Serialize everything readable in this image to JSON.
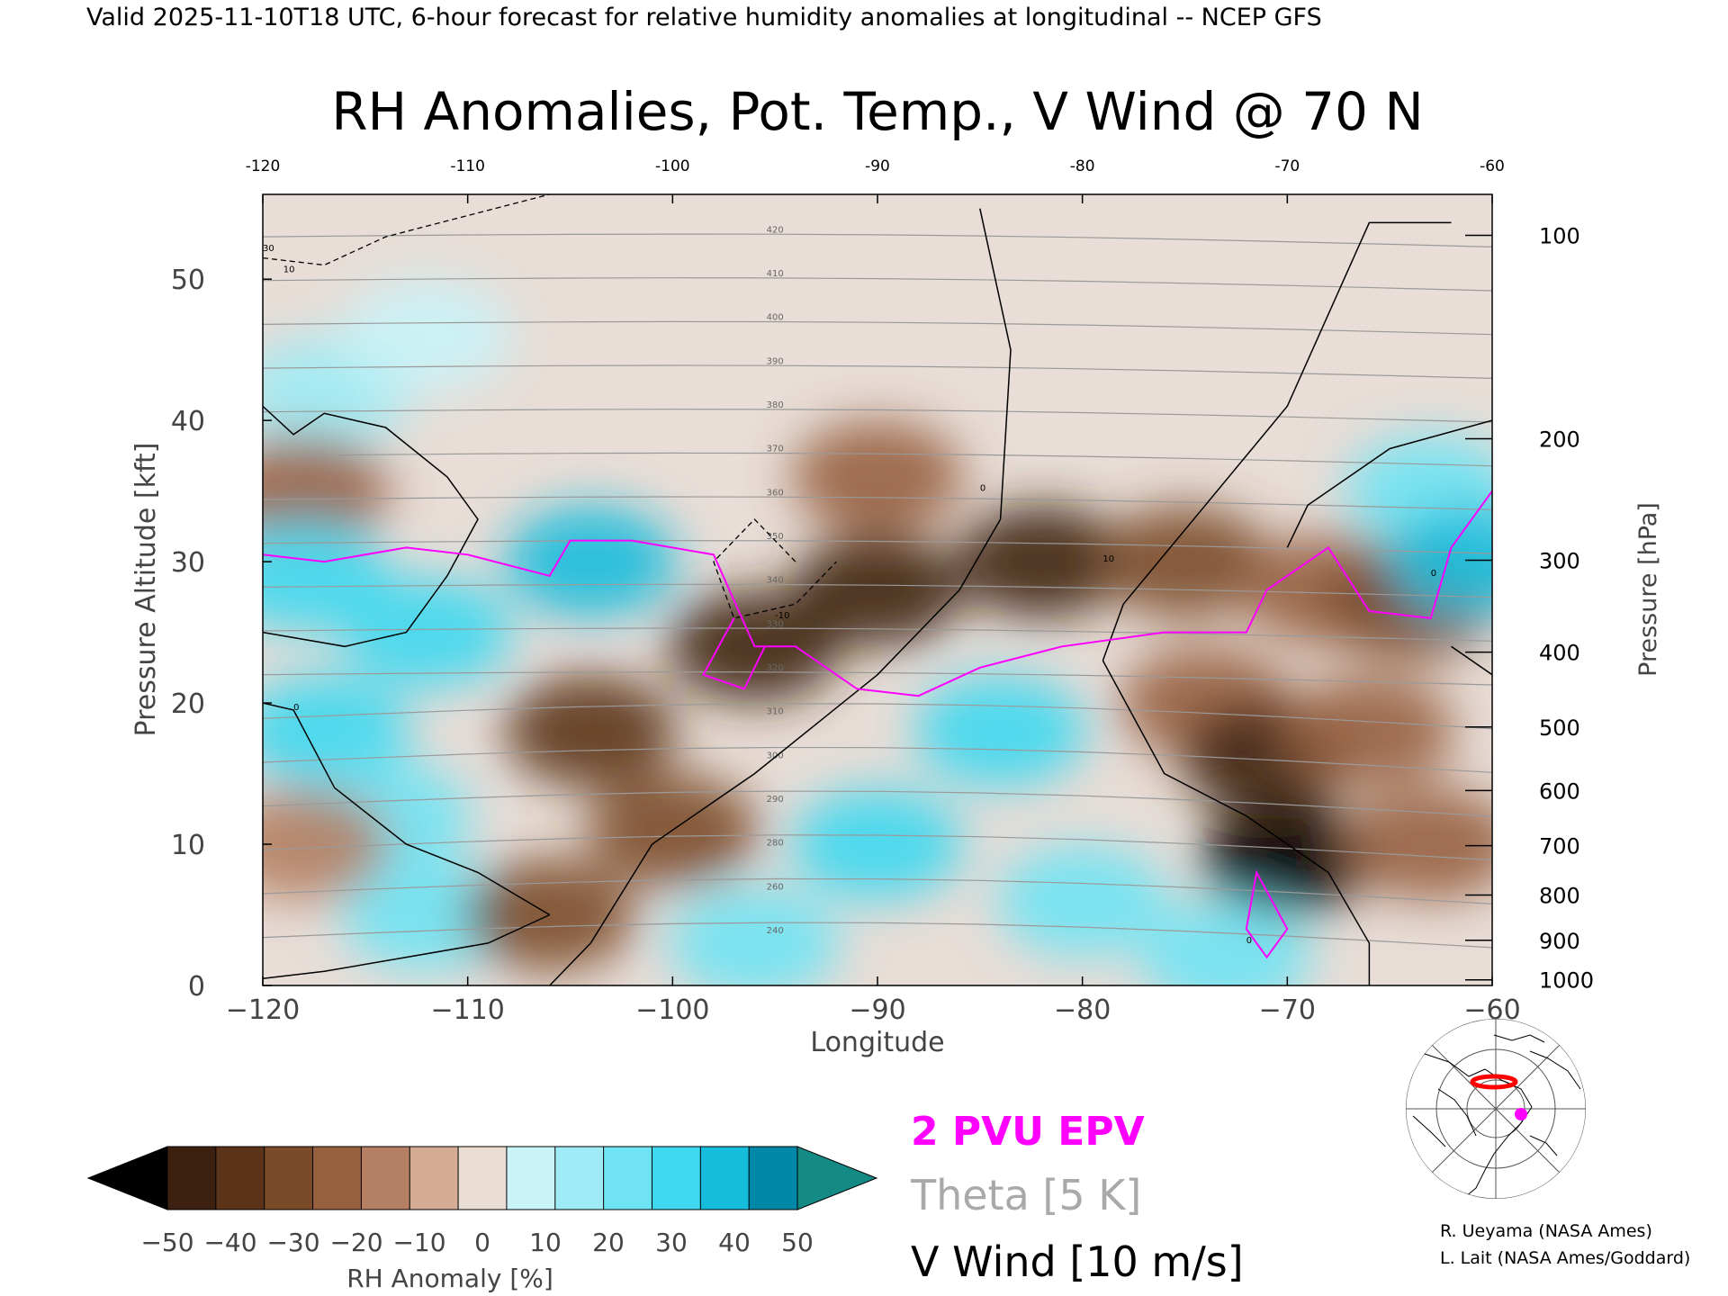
{
  "header": {
    "valid_line": "Valid 2025-11-10T18 UTC, 6-hour forecast for relative humidity anomalies at longitudinal -- NCEP GFS",
    "title": "RH Anomalies, Pot. Temp., V Wind @ 70 N"
  },
  "chart_data": {
    "type": "heatmap",
    "title": "RH Anomalies, Pot. Temp., V Wind @ 70 N",
    "xlabel": "Longitude",
    "ylabel": "Pressure Altitude [kft]",
    "ylabel_right": "Pressure [hPa]",
    "xlim": [
      -120,
      -60
    ],
    "ylim": [
      0,
      56
    ],
    "x_ticks": [
      -120,
      -110,
      -100,
      -90,
      -80,
      -70,
      -60
    ],
    "x_tick_labels": [
      "−120",
      "−110",
      "−100",
      "−90",
      "−80",
      "−70",
      "−60"
    ],
    "x_top_tick_labels": [
      "-120",
      "-110",
      "-100",
      "-90",
      "-80",
      "-70",
      "-60"
    ],
    "y_ticks": [
      0,
      10,
      20,
      30,
      40,
      50
    ],
    "y_tick_labels": [
      "0",
      "10",
      "20",
      "30",
      "40",
      "50"
    ],
    "pressure_ticks": [
      {
        "hPa": 100,
        "label": "100",
        "kft": 53.1
      },
      {
        "hPa": 200,
        "label": "200",
        "kft": 38.7
      },
      {
        "hPa": 300,
        "label": "300",
        "kft": 30.1
      },
      {
        "hPa": 400,
        "label": "400",
        "kft": 23.6
      },
      {
        "hPa": 500,
        "label": "500",
        "kft": 18.3
      },
      {
        "hPa": 600,
        "label": "600",
        "kft": 13.8
      },
      {
        "hPa": 700,
        "label": "700",
        "kft": 9.9
      },
      {
        "hPa": 800,
        "label": "800",
        "kft": 6.4
      },
      {
        "hPa": 900,
        "label": "900",
        "kft": 3.2
      },
      {
        "hPa": 1000,
        "label": "1000",
        "kft": 0.4
      }
    ],
    "rh_anomaly_regions": [
      {
        "lon": -117,
        "kft": 42,
        "value": 15
      },
      {
        "lon": -112,
        "kft": 46,
        "value": 5
      },
      {
        "lon": -118,
        "kft": 35,
        "value": -15
      },
      {
        "lon": -118,
        "kft": 29,
        "value": 35
      },
      {
        "lon": -104,
        "kft": 30,
        "value": 40
      },
      {
        "lon": -112,
        "kft": 25,
        "value": 30
      },
      {
        "lon": -117,
        "kft": 18,
        "value": 30
      },
      {
        "lon": -114,
        "kft": 12,
        "value": 25
      },
      {
        "lon": -112,
        "kft": 5,
        "value": 25
      },
      {
        "lon": -118,
        "kft": 10,
        "value": -10
      },
      {
        "lon": -106,
        "kft": 5,
        "value": -25
      },
      {
        "lon": -104,
        "kft": 18,
        "value": -40
      },
      {
        "lon": -100,
        "kft": 11,
        "value": -25
      },
      {
        "lon": -96,
        "kft": 24,
        "value": -45
      },
      {
        "lon": -90,
        "kft": 28,
        "value": -45
      },
      {
        "lon": -82,
        "kft": 30,
        "value": -45
      },
      {
        "lon": -75,
        "kft": 30,
        "value": -30
      },
      {
        "lon": -90,
        "kft": 36,
        "value": -15
      },
      {
        "lon": -84,
        "kft": 18,
        "value": 35
      },
      {
        "lon": -90,
        "kft": 10,
        "value": 35
      },
      {
        "lon": -80,
        "kft": 6,
        "value": 25
      },
      {
        "lon": -96,
        "kft": 3,
        "value": 20
      },
      {
        "lon": -74,
        "kft": 20,
        "value": -20
      },
      {
        "lon": -70,
        "kft": 9,
        "value": -50
      },
      {
        "lon": -71,
        "kft": 16,
        "value": -45
      },
      {
        "lon": -66,
        "kft": 18,
        "value": -20
      },
      {
        "lon": -68,
        "kft": 28,
        "value": -15
      },
      {
        "lon": -64,
        "kft": 27,
        "value": -25
      },
      {
        "lon": -63,
        "kft": 35,
        "value": 25
      },
      {
        "lon": -61,
        "kft": 30,
        "value": 45
      },
      {
        "lon": -63,
        "kft": 10,
        "value": -20
      },
      {
        "lon": -73,
        "kft": 2,
        "value": 20
      }
    ],
    "theta_contour_labels": [
      "420",
      "410",
      "400",
      "390",
      "380",
      "370",
      "360",
      "350",
      "340",
      "330",
      "320",
      "310",
      "300",
      "290",
      "280",
      "260",
      "240"
    ],
    "v_wind_contour_labels": [
      "10",
      "0",
      "-10",
      "0",
      "10",
      "0",
      "30",
      "0"
    ],
    "series": [
      {
        "name": "2 PVU EPV",
        "color": "#ff00ff",
        "x": [
          -120,
          -117,
          -113,
          -110,
          -106,
          -105,
          -102,
          -98,
          -96,
          -94,
          -91,
          -88,
          -85,
          -81,
          -76,
          -72,
          -71,
          -68,
          -66,
          -63,
          -62,
          -60
        ],
        "y": [
          30.5,
          30,
          31,
          30.5,
          29,
          31.5,
          31.5,
          30.5,
          24,
          24,
          21,
          20.5,
          22.5,
          24,
          25,
          25,
          28,
          31,
          26.5,
          26,
          31,
          35
        ]
      }
    ],
    "theta_interval": "5 K",
    "v_wind_interval": "10 m/s"
  },
  "colorbar": {
    "label": "RH Anomaly [%]",
    "tick_labels": [
      "−50",
      "−40",
      "−30",
      "−20",
      "−10",
      "0",
      "10",
      "20",
      "30",
      "40",
      "50"
    ],
    "colors": [
      "#3d2110",
      "#5b3318",
      "#7a4a29",
      "#976140",
      "#b47f63",
      "#d4ab95",
      "#e9ddd4",
      "#c9f3f7",
      "#9eebf5",
      "#6fe3f3",
      "#3ed8ef",
      "#16bcdc",
      "#0088a8"
    ],
    "under_color": "#000000",
    "over_color": "#148a85"
  },
  "legend": {
    "pvu": "2 PVU EPV",
    "theta": "Theta [5 K]",
    "vwind": "V Wind [10 m/s]",
    "colors": {
      "pvu": "#ff00ff",
      "theta": "#a9a9a9",
      "vwind": "#000000"
    }
  },
  "credits": {
    "line1": "R. Ueyama (NASA Ames)",
    "line2": "L. Lait (NASA Ames/Goddard)"
  },
  "inset_map": {
    "icon": "polar-map-icon",
    "marker_color": "#ff00ff",
    "track_color": "#ff0000"
  }
}
